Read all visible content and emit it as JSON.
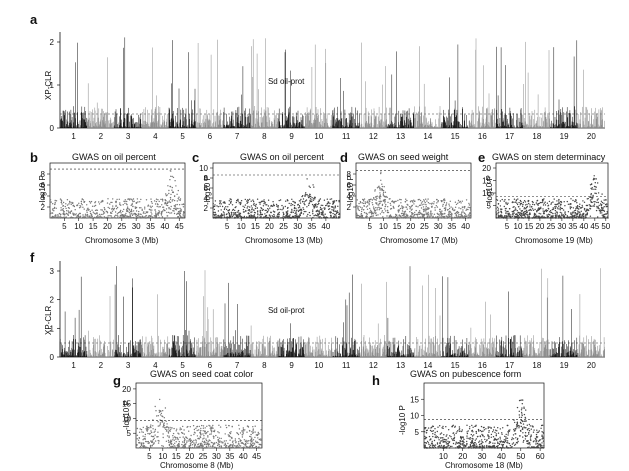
{
  "panels": {
    "a": {
      "label": "a",
      "ylabel": "XP-CLR",
      "yticks": [
        "0",
        "1",
        "2"
      ],
      "chrom_labels": [
        "1",
        "2",
        "3",
        "4",
        "5",
        "6",
        "7",
        "8",
        "9",
        "10",
        "11",
        "12",
        "13",
        "14",
        "15",
        "16",
        "17",
        "18",
        "19",
        "20"
      ],
      "callout": "Sd oil-prot"
    },
    "b": {
      "label": "b",
      "title": "GWAS on oil percent",
      "xlabel": "Chromosome 3 (Mb)",
      "ylabel": "-log10 P",
      "yticks": [
        "2",
        "4",
        "6",
        "8"
      ],
      "xticks": [
        "5",
        "10",
        "15",
        "20",
        "25",
        "30",
        "35",
        "40",
        "45"
      ]
    },
    "c": {
      "label": "c",
      "title": "GWAS on oil percent",
      "xlabel": "Chromosome 13 (Mb)",
      "ylabel": "-log10 P",
      "yticks": [
        "2",
        "4",
        "6",
        "8",
        "10"
      ],
      "xticks": [
        "5",
        "10",
        "15",
        "20",
        "25",
        "30",
        "35",
        "40"
      ]
    },
    "d": {
      "label": "d",
      "title": "GWAS on seed weight",
      "xlabel": "Chromosome 17 (Mb)",
      "ylabel": "-log10 P",
      "yticks": [
        "2",
        "4",
        "6",
        "8"
      ],
      "xticks": [
        "5",
        "10",
        "15",
        "20",
        "25",
        "30",
        "35",
        "40"
      ]
    },
    "e": {
      "label": "e",
      "title": "GWAS on stem determinacy",
      "xlabel": "Chromosome 19 (Mb)",
      "ylabel": "-log10 P",
      "yticks": [
        "5",
        "10",
        "15",
        "20"
      ],
      "xticks": [
        "5",
        "10",
        "15",
        "20",
        "25",
        "30",
        "35",
        "40",
        "45",
        "50"
      ]
    },
    "f": {
      "label": "f",
      "ylabel": "XP-CLR",
      "yticks": [
        "0",
        "1",
        "2",
        "3"
      ],
      "chrom_labels": [
        "1",
        "2",
        "3",
        "4",
        "5",
        "6",
        "7",
        "8",
        "9",
        "10",
        "11",
        "12",
        "13",
        "14",
        "15",
        "16",
        "17",
        "18",
        "19",
        "20"
      ],
      "callout": "Sd oil-prot"
    },
    "g": {
      "label": "g",
      "title": "GWAS on seed coat color",
      "xlabel": "Chromosome 8 (Mb)",
      "ylabel": "-log10 P",
      "yticks": [
        "5",
        "10",
        "15",
        "20"
      ],
      "xticks": [
        "5",
        "10",
        "15",
        "20",
        "25",
        "30",
        "35",
        "40",
        "45"
      ]
    },
    "h": {
      "label": "h",
      "title": "GWAS on pubescence form",
      "xlabel": "Chromosome 18 (Mb)",
      "ylabel": "-log10 P",
      "yticks": [
        "5",
        "10",
        "15"
      ],
      "xticks": [
        "10",
        "20",
        "30",
        "40",
        "50",
        "60"
      ]
    }
  },
  "chart_data": [
    {
      "type": "scatter",
      "panel": "a",
      "xlabel": "",
      "ylabel": "XP-CLR",
      "ylim": [
        0,
        2.2
      ],
      "categories": [
        "1",
        "2",
        "3",
        "4",
        "5",
        "6",
        "7",
        "8",
        "9",
        "10",
        "11",
        "12",
        "13",
        "14",
        "15",
        "16",
        "17",
        "18",
        "19",
        "20"
      ]
    },
    {
      "type": "scatter",
      "panel": "b",
      "title": "GWAS on oil percent",
      "xlabel": "Chromosome 3 (Mb)",
      "ylabel": "-log10 P",
      "xlim": [
        0,
        47
      ],
      "ylim": [
        0,
        10
      ],
      "threshold": 8.9
    },
    {
      "type": "scatter",
      "panel": "c",
      "title": "GWAS on oil percent",
      "xlabel": "Chromosome 13 (Mb)",
      "ylabel": "-log10 P",
      "xlim": [
        0,
        45
      ],
      "ylim": [
        0,
        11
      ],
      "threshold": 8.6
    },
    {
      "type": "scatter",
      "panel": "d",
      "title": "GWAS on seed weight",
      "xlabel": "Chromosome 17 (Mb)",
      "ylabel": "-log10 P",
      "xlim": [
        0,
        42
      ],
      "ylim": [
        0,
        10
      ],
      "threshold": 8.6
    },
    {
      "type": "scatter",
      "panel": "e",
      "title": "GWAS on stem determinacy",
      "xlabel": "Chromosome 19 (Mb)",
      "ylabel": "-log10 P",
      "xlim": [
        0,
        51
      ],
      "ylim": [
        0,
        22
      ],
      "threshold": 8.6
    },
    {
      "type": "scatter",
      "panel": "f",
      "xlabel": "",
      "ylabel": "XP-CLR",
      "ylim": [
        0,
        3.3
      ],
      "categories": [
        "1",
        "2",
        "3",
        "4",
        "5",
        "6",
        "7",
        "8",
        "9",
        "10",
        "11",
        "12",
        "13",
        "14",
        "15",
        "16",
        "17",
        "18",
        "19",
        "20"
      ]
    },
    {
      "type": "scatter",
      "panel": "g",
      "title": "GWAS on seed coat color",
      "xlabel": "Chromosome 8 (Mb)",
      "ylabel": "-log10 P",
      "xlim": [
        0,
        47
      ],
      "ylim": [
        0,
        22
      ],
      "threshold": 9.3
    },
    {
      "type": "scatter",
      "panel": "h",
      "title": "GWAS on pubescence form",
      "xlabel": "Chromosome 18 (Mb)",
      "ylabel": "-log10 P",
      "xlim": [
        0,
        62
      ],
      "ylim": [
        0,
        20
      ],
      "threshold": 8.8
    }
  ]
}
